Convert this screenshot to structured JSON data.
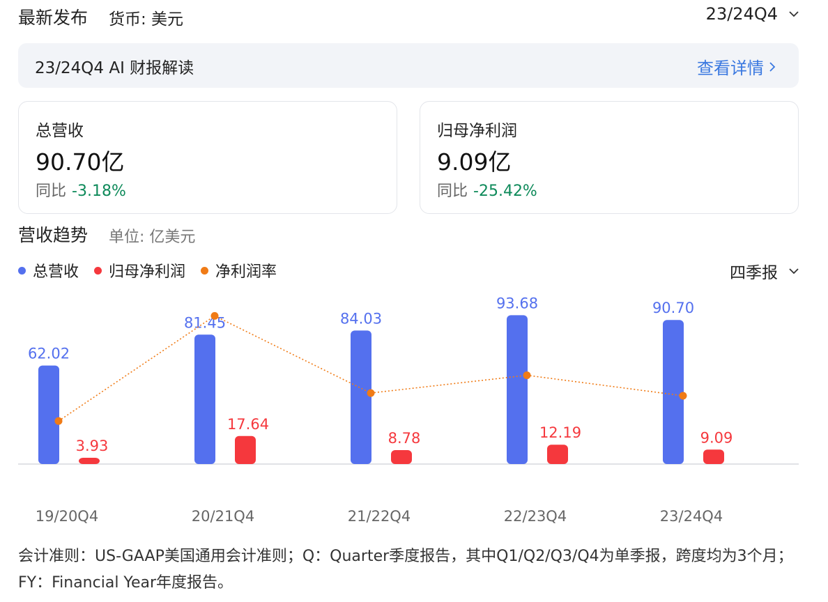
{
  "header": {
    "title": "最新发布",
    "currency": "货币: 美元",
    "period": "23/24Q4"
  },
  "ai_banner": {
    "title": "23/24Q4 AI 财报解读",
    "detail_label": "查看详情"
  },
  "cards": [
    {
      "label": "总营收",
      "value": "90.70亿",
      "yoy_label": "同比",
      "yoy_value": "-3.18%"
    },
    {
      "label": "归母净利润",
      "value": "9.09亿",
      "yoy_label": "同比",
      "yoy_value": "-25.42%"
    }
  ],
  "trend": {
    "title": "营收趋势",
    "unit": "单位: 亿美元",
    "frequency": "四季报"
  },
  "colors": {
    "revenue": "#5470ee",
    "net_profit": "#f5383d",
    "margin": "#f07b16",
    "positive_change": "#0e8a5a",
    "link": "#3a78e0"
  },
  "chart_data": {
    "type": "bar",
    "categories": [
      "19/20Q4",
      "20/21Q4",
      "21/22Q4",
      "22/23Q4",
      "23/24Q4"
    ],
    "series": [
      {
        "name": "总营收",
        "type": "bar",
        "values": [
          62.02,
          81.45,
          84.03,
          93.68,
          90.7
        ],
        "labels": [
          "62.02",
          "81.45",
          "84.03",
          "93.68",
          "90.70"
        ]
      },
      {
        "name": "归母净利润",
        "type": "bar",
        "values": [
          3.93,
          17.64,
          8.78,
          12.19,
          9.09
        ],
        "labels": [
          "3.93",
          "17.64",
          "8.78",
          "12.19",
          "9.09"
        ]
      },
      {
        "name": "净利润率",
        "type": "line",
        "values": [
          6.3,
          21.7,
          10.4,
          13.0,
          10.0
        ]
      }
    ],
    "legend_position": "top-left"
  },
  "footnote": "会计准则：US-GAAP美国通用会计准则；Q：Quarter季度报告，其中Q1/Q2/Q3/Q4为单季报，跨度均为3个月；FY：Financial Year年度报告。"
}
